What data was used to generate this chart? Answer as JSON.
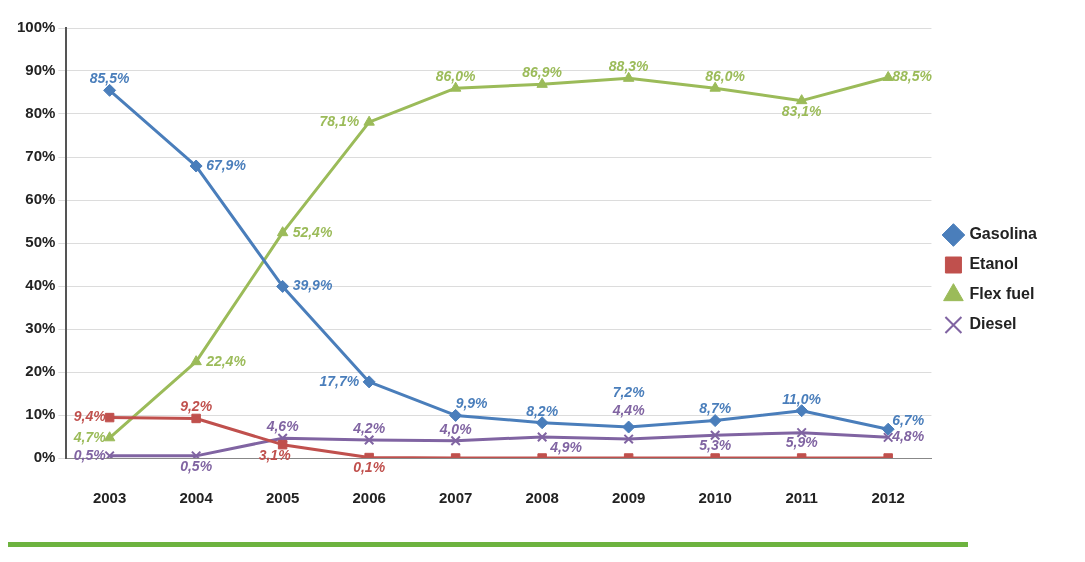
{
  "chart_data": {
    "type": "line",
    "categories": [
      "2003",
      "2004",
      "2005",
      "2006",
      "2007",
      "2008",
      "2009",
      "2010",
      "2011",
      "2012"
    ],
    "series": [
      {
        "name": "Gasolina",
        "color": "#4a7ebb",
        "marker": "diamond",
        "values": [
          85.5,
          67.9,
          39.9,
          17.7,
          9.9,
          8.2,
          7.2,
          8.7,
          11.0,
          6.7
        ],
        "value_labels": [
          "85,5%",
          "67,9%",
          "39,9%",
          "17,7%",
          "9,9%",
          "8,2%",
          "7,2%",
          "8,7%",
          "11,0%",
          "6,7%"
        ]
      },
      {
        "name": "Etanol",
        "color": "#c0504d",
        "marker": "square",
        "values": [
          9.4,
          9.2,
          3.1,
          0.1,
          0,
          0,
          0,
          0,
          0,
          0
        ],
        "value_labels": [
          "9,4%",
          "9,2%",
          "3,1%",
          "0,1%",
          null,
          null,
          null,
          null,
          null,
          null
        ]
      },
      {
        "name": "Flex fuel",
        "color": "#9bbb59",
        "marker": "triangle",
        "values": [
          4.7,
          22.4,
          52.4,
          78.1,
          86.0,
          86.9,
          88.3,
          86.0,
          83.1,
          88.5
        ],
        "value_labels": [
          "4,7%",
          "22,4%",
          "52,4%",
          "78,1%",
          "86,0%",
          "86,9%",
          "88,3%",
          "86,0%",
          "83,1%",
          "88,5%"
        ]
      },
      {
        "name": "Diesel",
        "color": "#8064a2",
        "marker": "cross",
        "values": [
          0.5,
          0.5,
          4.6,
          4.2,
          4.0,
          4.9,
          4.4,
          5.3,
          5.9,
          4.8
        ],
        "value_labels": [
          "0,5%",
          "0,5%",
          "4,6%",
          "4,2%",
          "4,0%",
          "4,9%",
          "4,4%",
          "5,3%",
          "5,9%",
          "4,8%"
        ]
      }
    ],
    "ylim": [
      0,
      100
    ],
    "yticks": [
      {
        "value": 0,
        "label": "0%"
      },
      {
        "value": 10,
        "label": "10%"
      },
      {
        "value": 20,
        "label": "20%"
      },
      {
        "value": 30,
        "label": "30%"
      },
      {
        "value": 40,
        "label": "40%"
      },
      {
        "value": 50,
        "label": "50%"
      },
      {
        "value": 60,
        "label": "60%"
      },
      {
        "value": 70,
        "label": "70%"
      },
      {
        "value": 80,
        "label": "80%"
      },
      {
        "value": 90,
        "label": "90%"
      },
      {
        "value": 100,
        "label": "100%"
      }
    ],
    "grid": "y",
    "legend": "right",
    "line_style": "solid"
  }
}
